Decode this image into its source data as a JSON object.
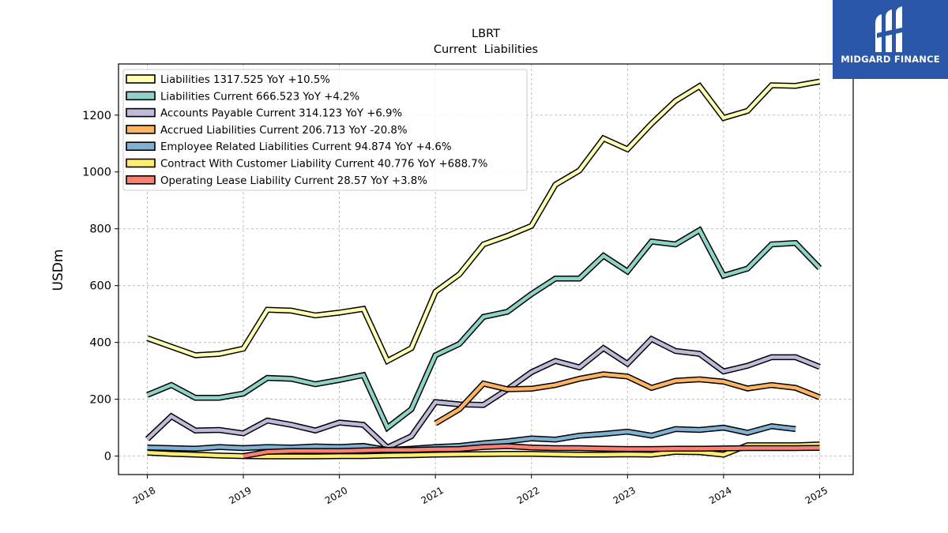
{
  "brand": {
    "name": "MIDGARD FINANCE",
    "bg": "#2b57a8"
  },
  "chart_data": {
    "type": "line",
    "title": "LBRT",
    "subtitle": "Current  Liabilities",
    "ylabel": "USDm",
    "xlim": [
      2017.7,
      2025.35
    ],
    "ylim": [
      -65,
      1380
    ],
    "yticks": [
      0,
      200,
      400,
      600,
      800,
      1000,
      1200
    ],
    "xticks": [
      2018,
      2019,
      2020,
      2021,
      2022,
      2023,
      2024,
      2025
    ],
    "xtick_labels": [
      "2018",
      "2019",
      "2020",
      "2021",
      "2022",
      "2023",
      "2024",
      "2025"
    ],
    "grid": true,
    "legend_position": "upper-left",
    "series": [
      {
        "name": "Liabilities",
        "legend": "Liabilities  1317.525 YoY +10.5%",
        "color": "#ffffb3",
        "x": [
          2018.0,
          2018.25,
          2018.5,
          2018.75,
          2019.0,
          2019.25,
          2019.5,
          2019.75,
          2020.0,
          2020.25,
          2020.5,
          2020.75,
          2021.0,
          2021.25,
          2021.5,
          2021.75,
          2022.0,
          2022.25,
          2022.5,
          2022.75,
          2023.0,
          2023.25,
          2023.5,
          2023.75,
          2024.0,
          2024.25,
          2024.5,
          2024.75,
          2025.0
        ],
        "y": [
          415,
          385,
          355,
          360,
          378,
          515,
          512,
          495,
          505,
          518,
          335,
          380,
          578,
          640,
          745,
          775,
          810,
          955,
          1005,
          1118,
          1080,
          1170,
          1250,
          1302,
          1190,
          1215,
          1305,
          1303,
          1318
        ]
      },
      {
        "name": "Liabilities Current",
        "legend": "Liabilities Current  666.523 YoY +4.2%",
        "color": "#8dd3c7",
        "x": [
          2018.0,
          2018.25,
          2018.5,
          2018.75,
          2019.0,
          2019.25,
          2019.5,
          2019.75,
          2020.0,
          2020.25,
          2020.5,
          2020.75,
          2021.0,
          2021.25,
          2021.5,
          2021.75,
          2022.0,
          2022.25,
          2022.5,
          2022.75,
          2023.0,
          2023.25,
          2023.5,
          2023.75,
          2024.0,
          2024.25,
          2024.5,
          2024.75,
          2025.0
        ],
        "y": [
          215,
          250,
          205,
          205,
          220,
          275,
          272,
          253,
          268,
          285,
          100,
          165,
          355,
          395,
          490,
          508,
          570,
          625,
          625,
          705,
          650,
          755,
          745,
          795,
          635,
          660,
          745,
          750,
          662
        ]
      },
      {
        "name": "Accounts Payable Current",
        "legend": "Accounts Payable Current  314.123 YoY +6.9%",
        "color": "#bebada",
        "x": [
          2018.0,
          2018.25,
          2018.5,
          2018.75,
          2019.0,
          2019.25,
          2019.5,
          2019.75,
          2020.0,
          2020.25,
          2020.5,
          2020.75,
          2021.0,
          2021.25,
          2021.5,
          2021.75,
          2022.0,
          2022.25,
          2022.5,
          2022.75,
          2023.0,
          2023.25,
          2023.5,
          2023.75,
          2024.0,
          2024.25,
          2024.5,
          2024.75,
          2025.0
        ],
        "y": [
          60,
          140,
          90,
          92,
          80,
          125,
          110,
          90,
          118,
          110,
          30,
          70,
          190,
          182,
          180,
          235,
          295,
          335,
          312,
          380,
          325,
          412,
          370,
          360,
          298,
          318,
          348,
          348,
          314
        ]
      },
      {
        "name": "Accrued Liabilities Current",
        "legend": "Accrued Liabilities Current  206.713 YoY -20.8%",
        "color": "#fdb462",
        "x": [
          2021.0,
          2021.25,
          2021.5,
          2021.75,
          2022.0,
          2022.25,
          2022.5,
          2022.75,
          2023.0,
          2023.25,
          2023.5,
          2023.75,
          2024.0,
          2024.25,
          2024.5,
          2024.75,
          2025.0
        ],
        "y": [
          115,
          165,
          255,
          235,
          237,
          250,
          272,
          288,
          280,
          240,
          265,
          270,
          262,
          238,
          250,
          240,
          207
        ]
      },
      {
        "name": "Employee Related Liabilities Current",
        "legend": "Employee Related Liabilities Current  94.874 YoY +4.6%",
        "color": "#80b1d3",
        "x": [
          2018.0,
          2018.25,
          2018.5,
          2018.75,
          2019.0,
          2019.25,
          2019.5,
          2019.75,
          2020.0,
          2020.25,
          2020.5,
          2020.75,
          2021.0,
          2021.25,
          2021.5,
          2021.75,
          2022.0,
          2022.25,
          2022.5,
          2022.75,
          2023.0,
          2023.25,
          2023.5,
          2023.75,
          2024.0,
          2024.25,
          2024.5,
          2024.75
        ],
        "y": [
          30,
          28,
          26,
          32,
          28,
          32,
          30,
          34,
          32,
          36,
          22,
          26,
          32,
          36,
          45,
          52,
          62,
          58,
          72,
          78,
          86,
          72,
          95,
          92,
          100,
          82,
          105,
          95
        ]
      },
      {
        "name": "Contract With Customer Liability Current",
        "legend": "Contract With Customer Liability Current  40.776 YoY +688.7%",
        "color": "#ffed6f",
        "x": [
          2018.0,
          2018.25,
          2018.5,
          2018.75,
          2019.0,
          2019.25,
          2019.5,
          2019.75,
          2020.0,
          2020.25,
          2020.5,
          2020.75,
          2021.0,
          2021.25,
          2021.5,
          2021.75,
          2022.0,
          2022.25,
          2022.5,
          2022.75,
          2023.0,
          2023.25,
          2023.5,
          2023.75,
          2024.0,
          2024.25,
          2024.5,
          2024.75,
          2025.0
        ],
        "y": [
          12,
          8,
          5,
          2,
          0,
          -1,
          -1,
          -1,
          0,
          0,
          2,
          3,
          5,
          6,
          7,
          8,
          8,
          6,
          5,
          5,
          6,
          5,
          15,
          14,
          5,
          38,
          38,
          38,
          41
        ]
      },
      {
        "name": "Operating Lease Liability Current",
        "legend": "Operating Lease Liability Current  28.57 YoY +3.8%",
        "color": "#fb8072",
        "x": [
          2019.0,
          2019.25,
          2019.5,
          2019.75,
          2020.0,
          2020.25,
          2020.5,
          2020.75,
          2021.0,
          2021.25,
          2021.5,
          2021.75,
          2022.0,
          2022.25,
          2022.5,
          2022.75,
          2023.0,
          2023.25,
          2023.5,
          2023.75,
          2024.0,
          2024.25,
          2024.5,
          2024.75,
          2025.0
        ],
        "y": [
          0,
          15,
          18,
          18,
          18,
          20,
          22,
          22,
          24,
          25,
          32,
          35,
          30,
          28,
          28,
          26,
          25,
          25,
          26,
          26,
          27,
          28,
          28,
          28,
          29
        ]
      }
    ]
  }
}
